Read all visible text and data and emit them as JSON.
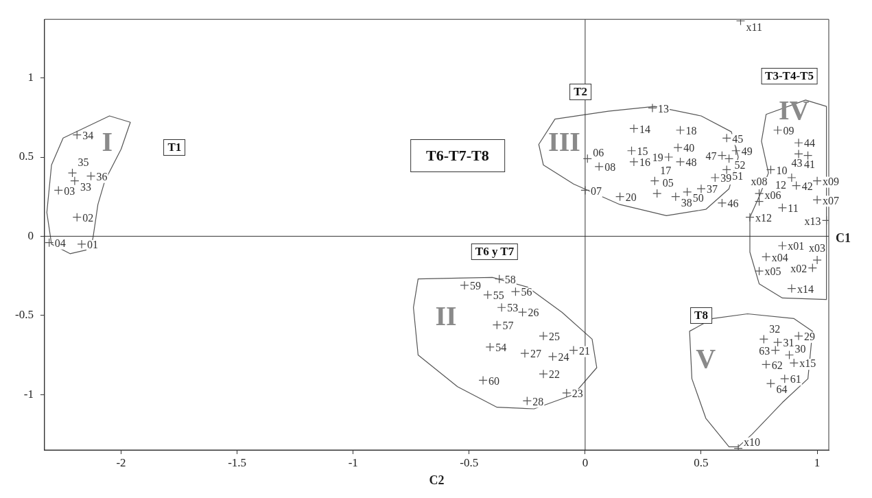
{
  "chart_data": {
    "type": "scatter",
    "xlabel": "C2",
    "xlim": [
      -2.33,
      1.05
    ],
    "ylim": [
      -1.35,
      1.37
    ],
    "xticks": [
      -2,
      -1.5,
      -1,
      -0.5,
      0,
      0.5,
      1
    ],
    "yticks": [
      -1,
      -0.5,
      0,
      0.5,
      1
    ],
    "marker": "cross",
    "legend": false,
    "ref_lines": [
      {
        "axis": "x",
        "value": 0
      },
      {
        "axis": "y",
        "value": 0,
        "label": "C1"
      }
    ],
    "annotations": [
      "I",
      "II",
      "III",
      "IV",
      "V",
      "T1",
      "T2",
      "T3-T4-T5",
      "T6-T7-T8",
      "T6 y T7",
      "T8",
      {
        "text": "34",
        "x": -2.19,
        "y": 0.64
      },
      {
        "text": "35",
        "x": -2.21,
        "y": 0.4
      },
      {
        "text": "36",
        "x": -2.13,
        "y": 0.38
      },
      {
        "text": "33",
        "x": -2.2,
        "y": 0.35
      },
      {
        "text": "03",
        "x": -2.27,
        "y": 0.29
      },
      {
        "text": "02",
        "x": -2.19,
        "y": 0.12
      },
      {
        "text": "04",
        "x": -2.31,
        "y": -0.04
      },
      {
        "text": "01",
        "x": -2.17,
        "y": -0.05
      },
      {
        "text": "13",
        "x": 0.29,
        "y": 0.81
      },
      {
        "text": "14",
        "x": 0.21,
        "y": 0.68
      },
      {
        "text": "18",
        "x": 0.41,
        "y": 0.67
      },
      {
        "text": "40",
        "x": 0.4,
        "y": 0.56
      },
      {
        "text": "45",
        "x": 0.61,
        "y": 0.62
      },
      {
        "text": "47",
        "x": 0.59,
        "y": 0.51
      },
      {
        "text": "49",
        "x": 0.65,
        "y": 0.54
      },
      {
        "text": "15",
        "x": 0.2,
        "y": 0.54
      },
      {
        "text": "16",
        "x": 0.21,
        "y": 0.47
      },
      {
        "text": "19",
        "x": 0.36,
        "y": 0.5
      },
      {
        "text": "48",
        "x": 0.41,
        "y": 0.47
      },
      {
        "text": "52",
        "x": 0.62,
        "y": 0.49
      },
      {
        "text": "06",
        "x": 0.01,
        "y": 0.49
      },
      {
        "text": "08",
        "x": 0.06,
        "y": 0.44
      },
      {
        "text": "07",
        "x": 0,
        "y": 0.29
      },
      {
        "text": "05",
        "x": 0.31,
        "y": 0.27
      },
      {
        "text": "17",
        "x": 0.3,
        "y": 0.35
      },
      {
        "text": "20",
        "x": 0.15,
        "y": 0.25
      },
      {
        "text": "38",
        "x": 0.39,
        "y": 0.25
      },
      {
        "text": "50",
        "x": 0.44,
        "y": 0.28
      },
      {
        "text": "39",
        "x": 0.56,
        "y": 0.37
      },
      {
        "text": "51",
        "x": 0.61,
        "y": 0.42
      },
      {
        "text": "37",
        "x": 0.5,
        "y": 0.3
      },
      {
        "text": "46",
        "x": 0.59,
        "y": 0.21
      },
      {
        "text": "09",
        "x": 0.83,
        "y": 0.67
      },
      {
        "text": "44",
        "x": 0.92,
        "y": 0.59
      },
      {
        "text": "41",
        "x": 0.92,
        "y": 0.52
      },
      {
        "text": "43",
        "x": 0.96,
        "y": 0.51
      },
      {
        "text": "10",
        "x": 0.8,
        "y": 0.42
      },
      {
        "text": "12",
        "x": 0.89,
        "y": 0.37
      },
      {
        "text": "42",
        "x": 0.91,
        "y": 0.32
      },
      {
        "text": "x09",
        "x": 1,
        "y": 0.35
      },
      {
        "text": "x08",
        "x": 0.75,
        "y": 0.27
      },
      {
        "text": "x06",
        "x": 0.75,
        "y": 0.22
      },
      {
        "text": "11",
        "x": 0.85,
        "y": 0.18
      },
      {
        "text": "x07",
        "x": 1,
        "y": 0.23
      },
      {
        "text": "x12",
        "x": 0.71,
        "y": 0.12
      },
      {
        "text": "x13",
        "x": 1.04,
        "y": 0.1
      },
      {
        "text": "x11",
        "x": 0.67,
        "y": 1.36
      },
      {
        "text": "x01",
        "x": 0.85,
        "y": -0.06
      },
      {
        "text": "x04",
        "x": 0.78,
        "y": -0.13
      },
      {
        "text": "x03",
        "x": 1,
        "y": -0.15
      },
      {
        "text": "x05",
        "x": 0.75,
        "y": -0.22
      },
      {
        "text": "x02",
        "x": 0.98,
        "y": -0.2
      },
      {
        "text": "x14",
        "x": 0.89,
        "y": -0.33
      },
      {
        "text": "58",
        "x": -0.37,
        "y": -0.27
      },
      {
        "text": "59",
        "x": -0.52,
        "y": -0.31
      },
      {
        "text": "55",
        "x": -0.42,
        "y": -0.37
      },
      {
        "text": "56",
        "x": -0.3,
        "y": -0.35
      },
      {
        "text": "53",
        "x": -0.36,
        "y": -0.45
      },
      {
        "text": "26",
        "x": -0.27,
        "y": -0.48
      },
      {
        "text": "57",
        "x": -0.38,
        "y": -0.56
      },
      {
        "text": "25",
        "x": -0.18,
        "y": -0.63
      },
      {
        "text": "54",
        "x": -0.41,
        "y": -0.7
      },
      {
        "text": "27",
        "x": -0.26,
        "y": -0.74
      },
      {
        "text": "21",
        "x": -0.05,
        "y": -0.72
      },
      {
        "text": "24",
        "x": -0.14,
        "y": -0.76
      },
      {
        "text": "22",
        "x": -0.18,
        "y": -0.87
      },
      {
        "text": "60",
        "x": -0.44,
        "y": -0.91
      },
      {
        "text": "23",
        "x": -0.08,
        "y": -0.99
      },
      {
        "text": "28",
        "x": -0.25,
        "y": -1.04
      },
      {
        "text": "32",
        "x": 0.77,
        "y": -0.65
      },
      {
        "text": "31",
        "x": 0.83,
        "y": -0.67
      },
      {
        "text": "29",
        "x": 0.92,
        "y": -0.63
      },
      {
        "text": "63",
        "x": 0.82,
        "y": -0.72
      },
      {
        "text": "30",
        "x": 0.88,
        "y": -0.75
      },
      {
        "text": "62",
        "x": 0.78,
        "y": -0.81
      },
      {
        "text": "x15",
        "x": 0.9,
        "y": -0.8
      },
      {
        "text": "61",
        "x": 0.86,
        "y": -0.9
      },
      {
        "text": "64",
        "x": 0.8,
        "y": -0.93
      },
      {
        "text": "x10",
        "x": 0.66,
        "y": -1.34
      }
    ],
    "series": [
      {
        "color": "#555555",
        "x": [
          -2.19,
          -2.21,
          -2.13,
          -2.2,
          -2.27,
          -2.19,
          -2.31,
          -2.17,
          0.29,
          0.21,
          0.41,
          0.4,
          0.61,
          0.59,
          0.65,
          0.2,
          0.21,
          0.36,
          0.41,
          0.62,
          0.01,
          0.06,
          0,
          0.31,
          0.3,
          0.15,
          0.39,
          0.44,
          0.56,
          0.61,
          0.5,
          0.59,
          0.83,
          0.92,
          0.92,
          0.96,
          0.8,
          0.89,
          0.91,
          1,
          0.75,
          0.75,
          0.85,
          1,
          0.71,
          1.04,
          0.67,
          0.85,
          0.78,
          1,
          0.75,
          0.98,
          0.89,
          -0.37,
          -0.52,
          -0.42,
          -0.3,
          -0.36,
          -0.27,
          -0.38,
          -0.18,
          -0.41,
          -0.26,
          -0.05,
          -0.14,
          -0.18,
          -0.44,
          -0.08,
          -0.25,
          0.77,
          0.83,
          0.92,
          0.82,
          0.88,
          0.78,
          0.9,
          0.86,
          0.8,
          0.66
        ],
        "values": [
          0.64,
          0.4,
          0.38,
          0.35,
          0.29,
          0.12,
          -0.04,
          -0.05,
          0.81,
          0.68,
          0.67,
          0.56,
          0.62,
          0.51,
          0.54,
          0.54,
          0.47,
          0.5,
          0.47,
          0.49,
          0.49,
          0.44,
          0.29,
          0.27,
          0.35,
          0.25,
          0.25,
          0.28,
          0.37,
          0.42,
          0.3,
          0.21,
          0.67,
          0.59,
          0.52,
          0.51,
          0.42,
          0.37,
          0.32,
          0.35,
          0.27,
          0.22,
          0.18,
          0.23,
          0.12,
          0.1,
          1.36,
          -0.06,
          -0.13,
          -0.15,
          -0.22,
          -0.2,
          -0.33,
          -0.27,
          -0.31,
          -0.37,
          -0.35,
          -0.45,
          -0.48,
          -0.56,
          -0.63,
          -0.7,
          -0.74,
          -0.72,
          -0.76,
          -0.87,
          -0.91,
          -0.99,
          -1.04,
          -0.65,
          -0.67,
          -0.63,
          -0.72,
          -0.75,
          -0.81,
          -0.8,
          -0.9,
          -0.93,
          -1.34
        ]
      }
    ]
  }
}
